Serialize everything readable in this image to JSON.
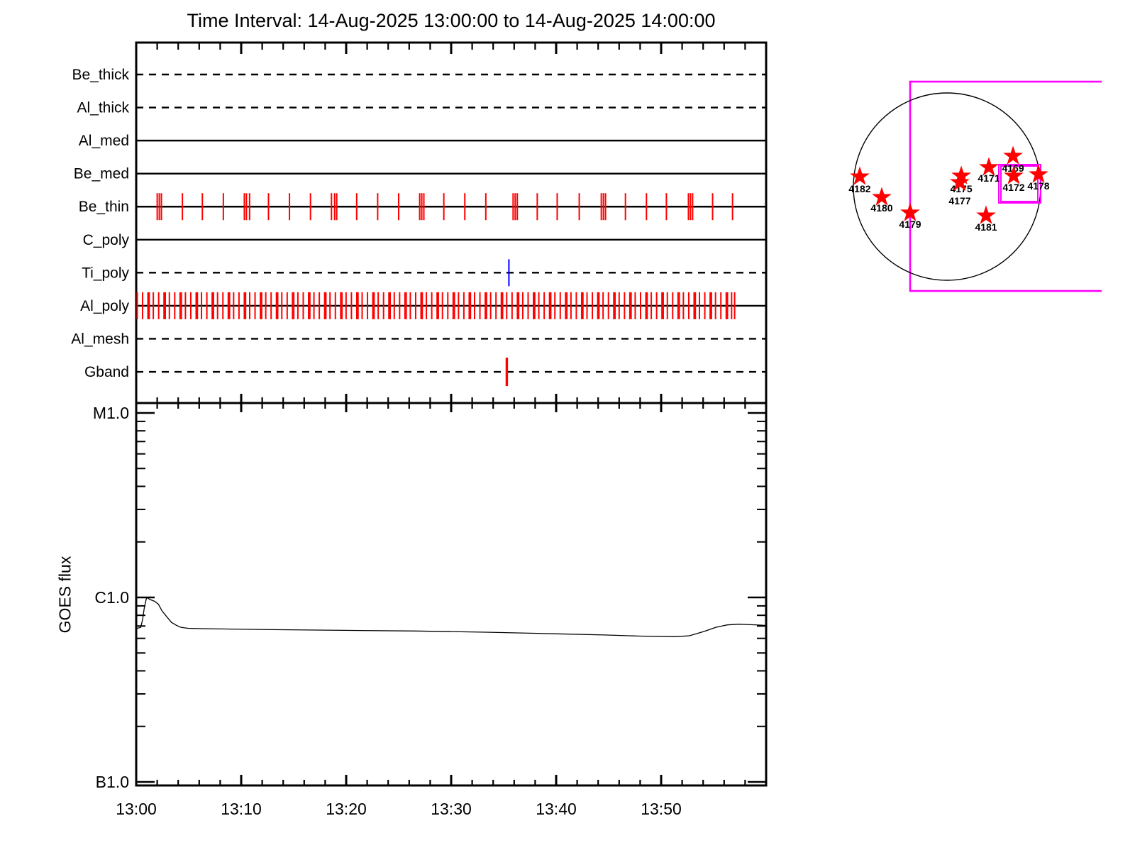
{
  "title": "Time Interval: 14-Aug-2025 13:00:00 to 14-Aug-2025 14:00:00",
  "goes_axis_title": "GOES flux",
  "colors": {
    "background": "#ffffff",
    "axis": "#000000",
    "exposure_red": "#ff0000",
    "exposure_blue": "#0000ff",
    "fov_magenta": "#ff00ff",
    "star_red": "#ff0000"
  },
  "chart_data": [
    {
      "type": "timeline",
      "name": "xrt-filter-exposure-timeline",
      "x_unit": "minutes after 13:00",
      "x_range": [
        0,
        60
      ],
      "x_major_tick_minutes": 10,
      "x_minor_tick_minutes": 2,
      "channels": [
        {
          "label": "Be_thick",
          "line": "dashed",
          "exposure_color": null,
          "exposures": []
        },
        {
          "label": "Al_thick",
          "line": "dashed",
          "exposure_color": null,
          "exposures": []
        },
        {
          "label": "Al_med",
          "line": "solid",
          "exposure_color": null,
          "exposures": []
        },
        {
          "label": "Be_med",
          "line": "solid",
          "exposure_color": null,
          "exposures": []
        },
        {
          "label": "Be_thin",
          "line": "solid",
          "exposure_color": "#ff0000",
          "exposures": [
            2.0,
            2.2,
            2.4,
            4.4,
            6.3,
            8.3,
            10.3,
            10.5,
            10.8,
            12.6,
            14.6,
            16.6,
            18.6,
            18.9,
            19.1,
            21.0,
            23.0,
            25.0,
            27.0,
            27.2,
            27.4,
            29.3,
            31.3,
            33.3,
            35.9,
            36.1,
            36.3,
            38.2,
            40.1,
            42.2,
            44.3,
            44.5,
            44.7,
            46.6,
            48.6,
            50.5,
            52.6,
            52.8,
            53.0,
            54.9,
            56.8
          ]
        },
        {
          "label": "C_poly",
          "line": "solid",
          "exposure_color": null,
          "exposures": []
        },
        {
          "label": "Ti_poly",
          "line": "dashed",
          "exposure_color": "#0000ff",
          "exposures": [
            35.5
          ]
        },
        {
          "label": "Al_poly",
          "line": "solid",
          "exposure_color": "#ff0000",
          "exposures": [
            0.1,
            0.61,
            1.12,
            1.24,
            1.63,
            2.14,
            2.65,
            2.77,
            3.16,
            3.67,
            4.18,
            4.3,
            4.69,
            5.2,
            5.71,
            5.83,
            6.22,
            6.73,
            7.24,
            7.36,
            7.75,
            8.26,
            8.77,
            8.89,
            9.28,
            9.79,
            10.3,
            10.42,
            10.81,
            11.32,
            11.83,
            11.95,
            12.34,
            12.85,
            13.36,
            13.48,
            13.87,
            14.38,
            14.89,
            15.01,
            15.4,
            15.91,
            16.42,
            16.54,
            16.93,
            17.44,
            17.95,
            18.07,
            18.46,
            18.97,
            19.48,
            19.6,
            19.99,
            20.5,
            21.01,
            21.13,
            21.52,
            22.03,
            22.54,
            22.66,
            23.05,
            23.56,
            24.07,
            24.19,
            24.58,
            25.09,
            25.6,
            25.72,
            26.11,
            26.62,
            27.13,
            27.25,
            27.64,
            28.15,
            28.66,
            28.78,
            29.17,
            29.68,
            30.19,
            30.31,
            30.7,
            31.21,
            31.72,
            31.84,
            32.23,
            32.74,
            33.25,
            33.37,
            33.76,
            34.27,
            34.78,
            34.9,
            35.29,
            35.8,
            36.31,
            36.43,
            36.82,
            37.33,
            37.84,
            37.96,
            38.35,
            38.86,
            39.37,
            39.49,
            39.88,
            40.39,
            40.9,
            41.02,
            41.41,
            41.92,
            42.43,
            42.55,
            42.94,
            43.45,
            43.96,
            44.08,
            44.47,
            44.98,
            45.49,
            45.61,
            46.0,
            46.51,
            47.02,
            47.14,
            47.53,
            48.04,
            48.55,
            48.67,
            49.06,
            49.57,
            50.08,
            50.2,
            50.59,
            51.1,
            51.61,
            51.73,
            52.12,
            52.63,
            53.14,
            53.26,
            53.65,
            54.16,
            54.67,
            54.79,
            55.18,
            55.69,
            56.2,
            56.32,
            56.71,
            57.0
          ]
        },
        {
          "label": "Al_mesh",
          "line": "dashed",
          "exposure_color": null,
          "exposures": []
        },
        {
          "label": "Gband",
          "line": "dashed",
          "exposure_color": "#ff0000",
          "wide": true,
          "exposures": [
            35.3
          ]
        }
      ]
    },
    {
      "type": "line",
      "name": "goes-flux-curve",
      "ylabel": "GOES flux",
      "y_scale": "log",
      "y_range_flux": [
        9.3e-08,
        1.17e-05
      ],
      "y_tick_labels": [
        {
          "label": "B1.0",
          "flux": 1e-07
        },
        {
          "label": "C1.0",
          "flux": 1e-06
        },
        {
          "label": "M1.0",
          "flux": 1e-05
        }
      ],
      "x_tick_labels": [
        "13:00",
        "13:10",
        "13:20",
        "13:30",
        "13:40",
        "13:50"
      ],
      "x_major_tick_minutes": 10,
      "x_minor_tick_minutes": 2,
      "x_minutes": [
        0,
        0.43,
        0.61,
        0.77,
        0.99,
        1.33,
        1.78,
        2.12,
        2.45,
        2.91,
        3.36,
        3.81,
        4.26,
        4.93,
        6.28,
        13.0,
        19.8,
        26.6,
        33.3,
        40.1,
        44.6,
        48.0,
        51.4,
        52.7,
        54.1,
        55.2,
        56.3,
        57.4,
        58.5,
        59.5,
        60
      ],
      "flux": [
        6.77e-07,
        6.89e-07,
        7.58e-07,
        8.78e-07,
        1e-06,
        9.74e-07,
        9.52e-07,
        9.18e-07,
        8.47e-07,
        7.85e-07,
        7.33e-07,
        7.07e-07,
        6.89e-07,
        6.8e-07,
        6.77e-07,
        6.69e-07,
        6.63e-07,
        6.58e-07,
        6.48e-07,
        6.35e-07,
        6.26e-07,
        6.17e-07,
        6.13e-07,
        6.2e-07,
        6.54e-07,
        6.89e-07,
        7.1e-07,
        7.16e-07,
        7.12e-07,
        7.08e-07,
        7.05e-07
      ]
    },
    {
      "type": "scatter",
      "name": "solar-disk-active-regions",
      "coordinate_unit": "solar radii from disk center",
      "active_regions": [
        {
          "noaa": "4182",
          "x": -0.932,
          "y": -0.106,
          "label_dy": 17
        },
        {
          "noaa": "4180",
          "x": -0.697,
          "y": 0.114,
          "label_dy": 15
        },
        {
          "noaa": "4179",
          "x": -0.394,
          "y": 0.28,
          "label_dy": 16
        },
        {
          "noaa": "4175",
          "x": 0.152,
          "y": -0.114,
          "label_dy": 18
        },
        {
          "noaa": "4177",
          "x": 0.136,
          "y": -0.045,
          "label_dy": 26
        },
        {
          "noaa": "4171",
          "x": 0.447,
          "y": -0.205,
          "label_dy": 15
        },
        {
          "noaa": "4169",
          "x": 0.705,
          "y": -0.326,
          "label_dy": 17
        },
        {
          "noaa": "4172",
          "x": 0.712,
          "y": -0.114,
          "label_dy": 16
        },
        {
          "noaa": "4178",
          "x": 0.977,
          "y": -0.129,
          "label_dy": 16
        },
        {
          "noaa": "4181",
          "x": 0.417,
          "y": 0.311,
          "label_dy": 16
        }
      ],
      "fov_boxes": {
        "large_open_box": {
          "x1": -0.394,
          "y1": -1.121,
          "x2": 1.652,
          "y2": 1.114,
          "sides": [
            "top",
            "left",
            "bottom"
          ]
        },
        "small_box_outer": {
          "x1": 0.553,
          "y1": -0.235,
          "x2": 1.0,
          "y2": 0.174
        },
        "small_box_inner": {
          "x1": 0.576,
          "y1": -0.22,
          "x2": 0.97,
          "y2": 0.159
        }
      }
    }
  ]
}
